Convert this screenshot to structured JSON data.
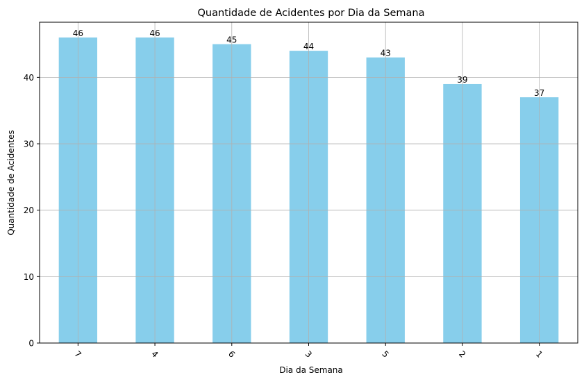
{
  "chart_data": {
    "type": "bar",
    "title": "Quantidade de Acidentes por Dia da Semana",
    "xlabel": "Dia da Semana",
    "ylabel": "Quantidade de Acidentes",
    "categories": [
      "7",
      "4",
      "6",
      "3",
      "5",
      "2",
      "1"
    ],
    "values": [
      46,
      46,
      45,
      44,
      43,
      39,
      37
    ],
    "data_labels": [
      "46",
      "46",
      "45",
      "44",
      "43",
      "39",
      "37"
    ],
    "ylim": [
      0,
      48.3
    ],
    "yticks": [
      0,
      10,
      20,
      30,
      40
    ],
    "ytick_labels": [
      "0",
      "10",
      "20",
      "30",
      "40"
    ],
    "grid": true,
    "x_tick_rotation": 45,
    "colors": {
      "bar": "#87ceeb",
      "grid": "#b0b0b0",
      "axis": "#000000"
    }
  }
}
